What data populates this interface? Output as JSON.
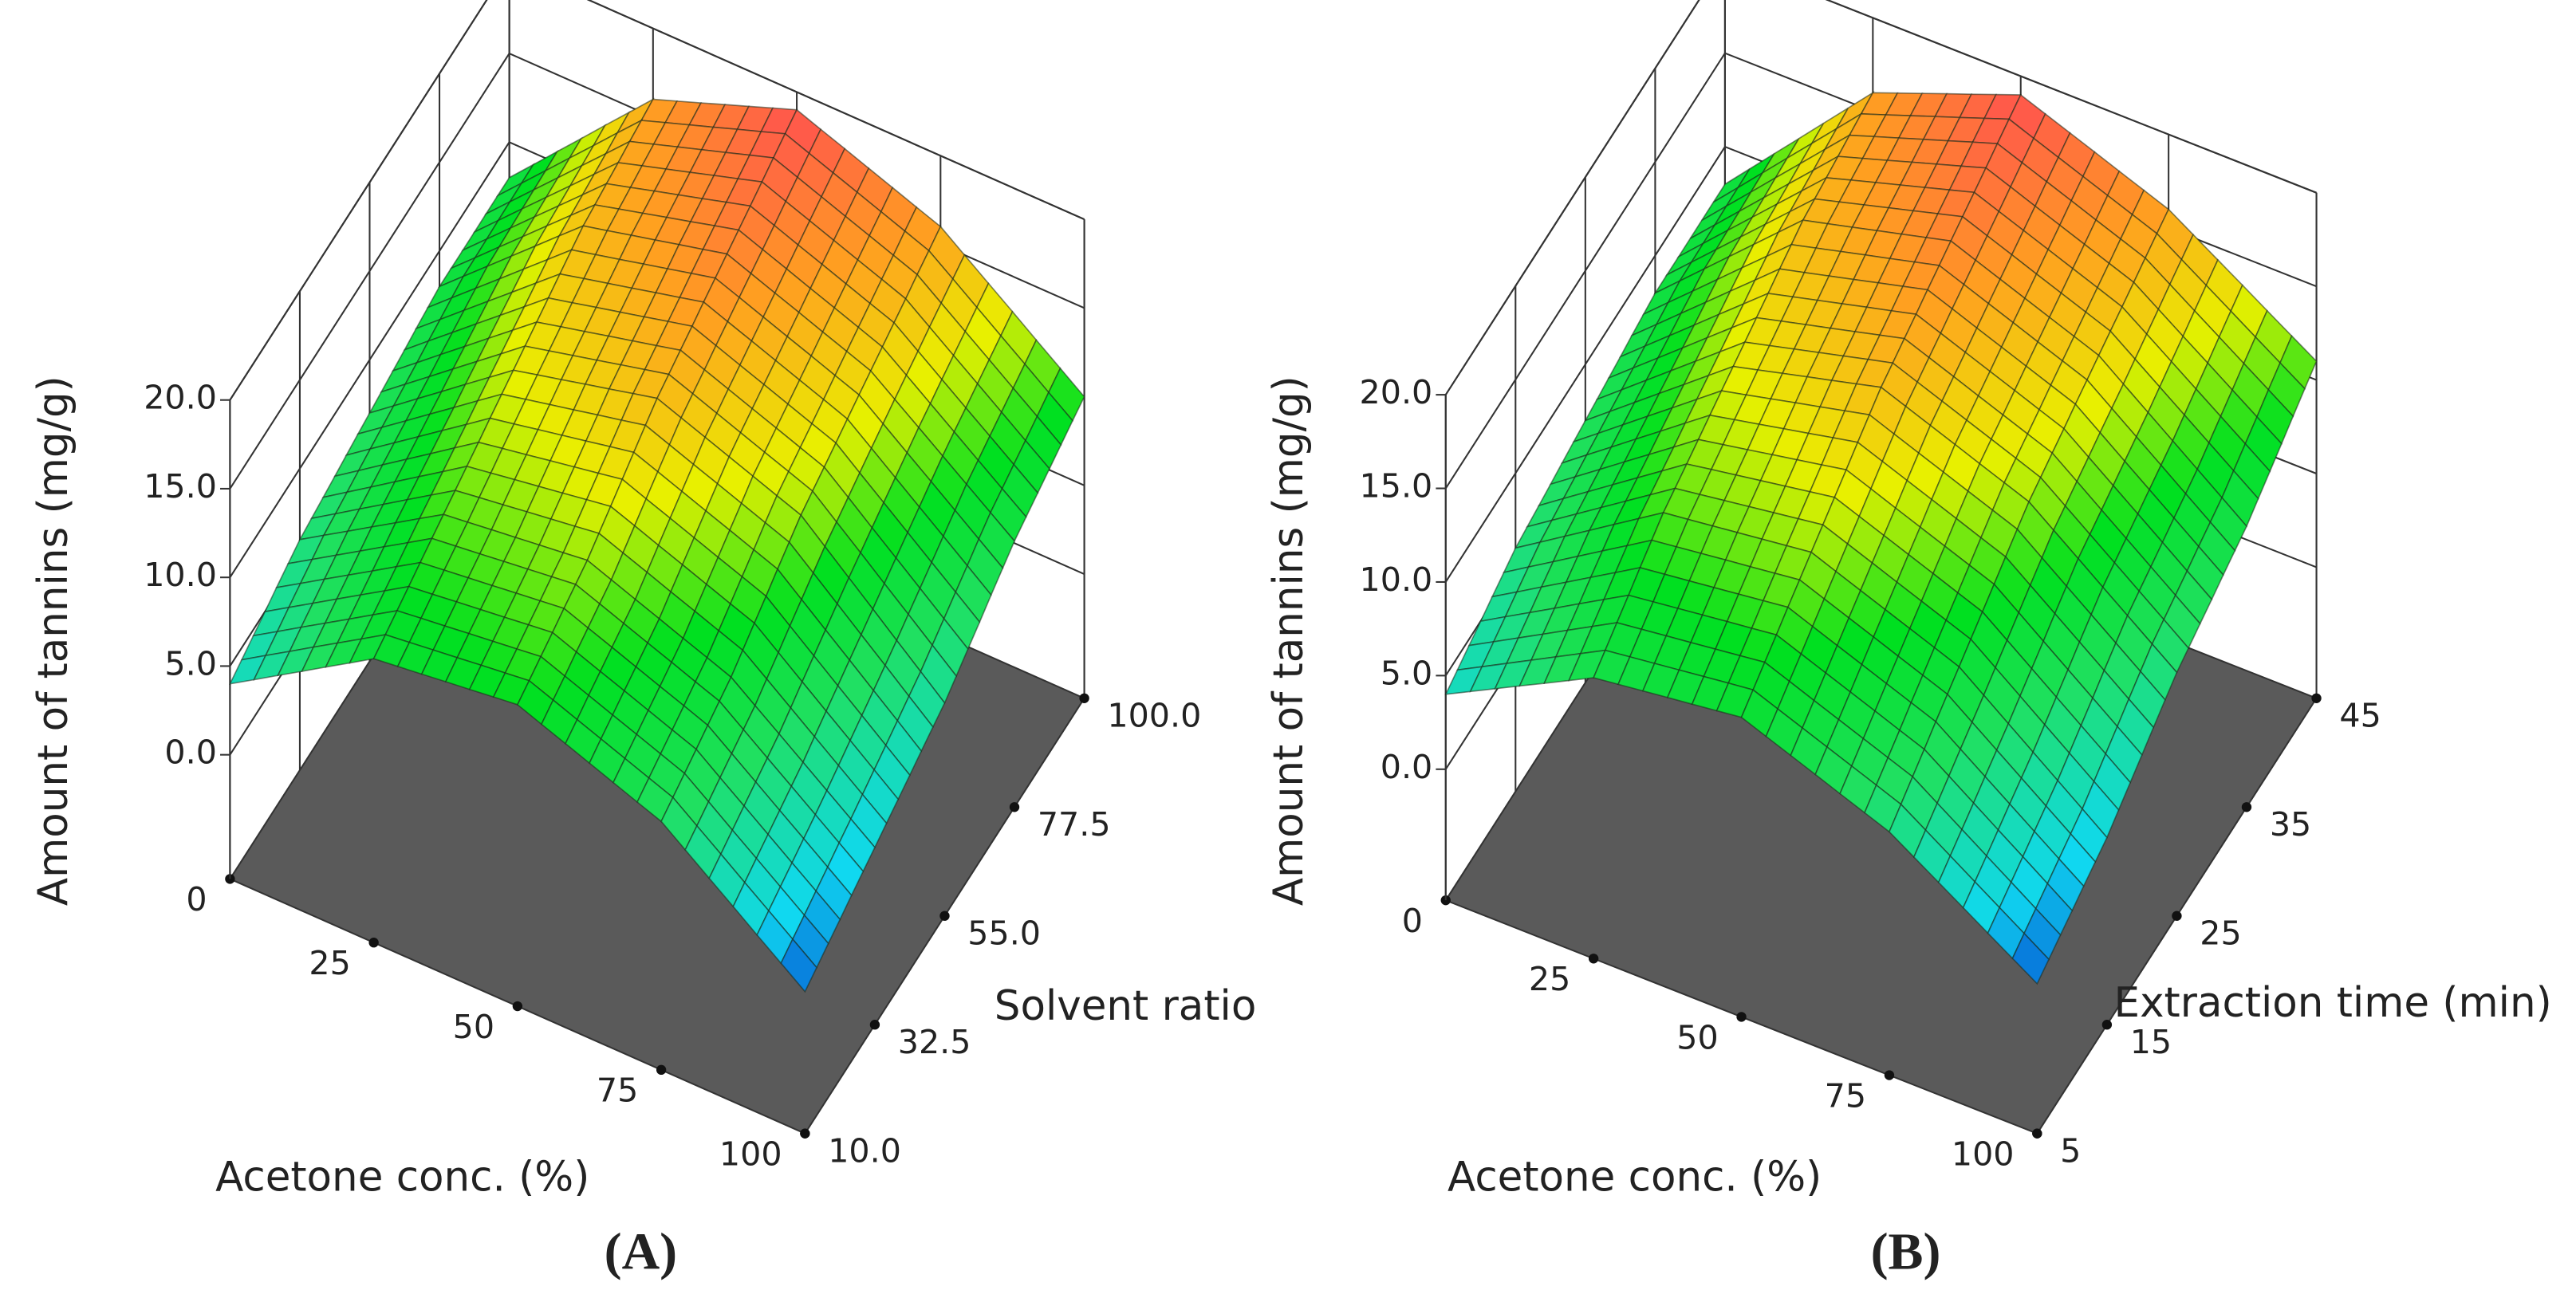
{
  "chart_data": [
    {
      "type": "surface",
      "panel_label": "(A)",
      "x_label": "Acetone conc. (%)",
      "y_label": "Solvent ratio",
      "z_label": "Amount of tannins (mg/g)",
      "xlim": [
        0,
        100
      ],
      "ylim": [
        10,
        100
      ],
      "zlim": [
        -7,
        20
      ],
      "xticks": [
        0,
        25,
        50,
        75,
        100
      ],
      "yticks": [
        {
          "value": 10,
          "label": "10.0"
        },
        32.5,
        {
          "value": 55,
          "label": "55.0"
        },
        77.5,
        {
          "value": 100,
          "label": "100.0"
        }
      ],
      "zticks": [
        {
          "value": 0,
          "label": "0.0"
        },
        {
          "value": 5,
          "label": "5.0"
        },
        {
          "value": 10,
          "label": "10.0"
        },
        {
          "value": 15,
          "label": "15.0"
        },
        {
          "value": 20,
          "label": "20.0"
        }
      ],
      "x": [
        0,
        25,
        50,
        75,
        100
      ],
      "y": [
        10,
        32.5,
        55,
        77.5,
        100
      ],
      "z": [
        [
          4,
          9,
          10,
          7,
          1
        ],
        [
          6,
          11,
          12,
          9,
          3
        ],
        [
          7,
          13,
          15,
          12,
          5
        ],
        [
          8,
          15,
          17,
          14,
          8
        ],
        [
          8,
          16,
          19,
          16,
          10
        ]
      ]
    },
    {
      "type": "surface",
      "panel_label": "(B)",
      "x_label": "Acetone conc. (%)",
      "y_label": "Extraction time (min)",
      "z_label": "Amount of tannins (mg/g)",
      "xlim": [
        0,
        100
      ],
      "ylim": [
        5,
        45
      ],
      "zlim": [
        -7,
        20
      ],
      "xticks": [
        0,
        25,
        50,
        75,
        100
      ],
      "yticks": [
        5,
        15,
        25,
        35,
        45
      ],
      "zticks": [
        {
          "value": 0,
          "label": "0.0"
        },
        {
          "value": 5,
          "label": "5.0"
        },
        {
          "value": 10,
          "label": "10.0"
        },
        {
          "value": 15,
          "label": "15.0"
        },
        {
          "value": 20,
          "label": "20.0"
        }
      ],
      "x": [
        0,
        25,
        50,
        75,
        100
      ],
      "y": [
        5,
        15,
        25,
        35,
        45
      ],
      "z": [
        [
          4,
          8,
          9,
          6,
          1
        ],
        [
          6,
          11,
          12,
          9,
          3
        ],
        [
          7,
          13,
          15,
          12,
          6
        ],
        [
          8,
          15,
          17,
          14,
          8
        ],
        [
          8,
          16,
          19,
          16,
          11
        ]
      ]
    }
  ]
}
